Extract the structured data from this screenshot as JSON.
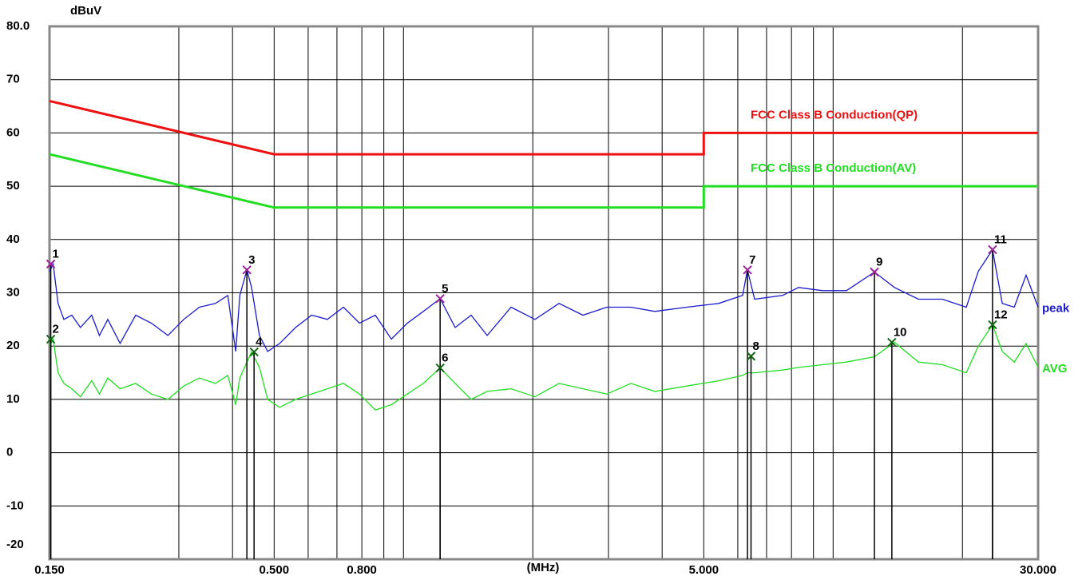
{
  "chart_data": {
    "type": "line",
    "log_x": true,
    "grid": true,
    "y_label": "dBuV",
    "x_label": "(MHz)",
    "ylim": [
      -20,
      80
    ],
    "yticks": [
      {
        "value": 80,
        "label": "80.0"
      },
      70,
      60,
      50,
      40,
      30,
      20,
      10,
      0,
      -10,
      -20
    ],
    "xlim": [
      0.15,
      30
    ],
    "xticks": [
      {
        "value": 0.15,
        "label": "0.150"
      },
      {
        "value": 0.5,
        "label": "0.500"
      },
      {
        "value": 0.8,
        "label": "0.800"
      },
      {
        "value": 5,
        "label": "5.000"
      },
      {
        "value": 30,
        "label": "30.000"
      }
    ],
    "xgrid": [
      0.3,
      0.4,
      0.5,
      0.6,
      0.7,
      0.8,
      0.9,
      1,
      2,
      3,
      4,
      5,
      6,
      7,
      8,
      9,
      10,
      20
    ],
    "series": [
      {
        "name": "FCC Class B Conduction(QP)",
        "color": "#ee1111",
        "width": 3,
        "x": [
          0.15,
          0.5,
          5,
          5,
          30
        ],
        "values": [
          66,
          56,
          56,
          60,
          60
        ]
      },
      {
        "name": "FCC Class B Conduction(AV)",
        "color": "#22dd22",
        "width": 3,
        "x": [
          0.15,
          0.5,
          5,
          5,
          30
        ],
        "values": [
          56,
          46,
          46,
          50,
          50
        ]
      },
      {
        "name": "peak",
        "color": "#1a1acc",
        "width": 1.3,
        "x": [
          0.15,
          0.153,
          0.157,
          0.162,
          0.169,
          0.177,
          0.188,
          0.196,
          0.205,
          0.219,
          0.238,
          0.259,
          0.283,
          0.308,
          0.335,
          0.365,
          0.39,
          0.407,
          0.416,
          0.432,
          0.443,
          0.462,
          0.483,
          0.515,
          0.561,
          0.611,
          0.665,
          0.725,
          0.79,
          0.86,
          0.937,
          1.021,
          1.112,
          1.217,
          1.319,
          1.437,
          1.566,
          1.78,
          2.024,
          2.302,
          2.616,
          2.975,
          3.383,
          3.846,
          4.564,
          5.416,
          6.158,
          6.318,
          6.567,
          7.629,
          8.31,
          9.45,
          10.74,
          12.48,
          13.89,
          15.8,
          17.96,
          20.42,
          21.77,
          23.5,
          24.75,
          26.4,
          28.14,
          30
        ],
        "values": [
          34,
          35.4,
          28,
          25,
          25.8,
          23.5,
          25.8,
          22,
          25,
          20.5,
          25.8,
          24.3,
          22,
          25,
          27.3,
          28,
          29.5,
          19,
          29.5,
          34.3,
          31,
          22,
          19,
          20.5,
          23.5,
          25.8,
          25,
          27.3,
          24.3,
          25.8,
          21.3,
          24.3,
          26.5,
          28.9,
          23.5,
          25.8,
          22,
          27.3,
          25,
          28,
          25.8,
          27.3,
          27.3,
          26.5,
          27.3,
          28,
          29.5,
          34.3,
          28.8,
          29.5,
          31,
          30.4,
          30.4,
          33.9,
          31,
          28.8,
          28.8,
          27.3,
          34,
          38.1,
          28,
          27.3,
          33.3,
          27.3
        ]
      },
      {
        "name": "AVG",
        "color": "#22dd22",
        "width": 1.3,
        "x": [
          0.15,
          0.153,
          0.157,
          0.162,
          0.169,
          0.177,
          0.188,
          0.196,
          0.205,
          0.219,
          0.238,
          0.259,
          0.283,
          0.308,
          0.335,
          0.365,
          0.39,
          0.407,
          0.416,
          0.432,
          0.443,
          0.462,
          0.483,
          0.515,
          0.561,
          0.611,
          0.665,
          0.725,
          0.79,
          0.86,
          0.937,
          1.021,
          1.112,
          1.217,
          1.319,
          1.437,
          1.566,
          1.78,
          2.024,
          2.302,
          2.616,
          2.975,
          3.383,
          3.846,
          4.564,
          5.416,
          6.158,
          6.318,
          6.567,
          7.629,
          8.31,
          9.45,
          10.74,
          12.48,
          13.89,
          15.8,
          17.96,
          20.42,
          21.77,
          23.5,
          24.75,
          26.4,
          28.14,
          30
        ],
        "values": [
          20,
          21.3,
          15,
          13,
          12,
          10.5,
          13.5,
          11,
          14,
          12,
          13,
          11,
          10,
          12.5,
          14,
          13,
          14.5,
          9,
          14,
          17,
          18.9,
          16,
          10,
          8.5,
          10,
          11,
          12,
          13,
          11,
          8,
          9,
          11,
          13,
          15.9,
          13,
          10,
          11.5,
          12,
          10.5,
          13,
          12,
          11,
          13,
          11.5,
          12.5,
          13.5,
          14.5,
          15,
          15,
          15.5,
          16,
          16.5,
          17,
          18,
          20.7,
          17,
          16.5,
          15,
          20,
          24,
          19,
          17,
          20.5,
          16
        ]
      }
    ],
    "markers": [
      {
        "label": "1",
        "x": 0.151,
        "value": 35.4,
        "color": "#992299"
      },
      {
        "label": "2",
        "x": 0.151,
        "value": 21.3,
        "color": "#116611"
      },
      {
        "label": "3",
        "x": 0.432,
        "value": 34.3,
        "color": "#992299"
      },
      {
        "label": "4",
        "x": 0.449,
        "value": 18.9,
        "color": "#116611"
      },
      {
        "label": "5",
        "x": 1.217,
        "value": 28.9,
        "color": "#992299"
      },
      {
        "label": "6",
        "x": 1.217,
        "value": 15.9,
        "color": "#116611"
      },
      {
        "label": "7",
        "x": 6.32,
        "value": 34.3,
        "color": "#992299"
      },
      {
        "label": "8",
        "x": 6.44,
        "value": 18.1,
        "color": "#116611"
      },
      {
        "label": "9",
        "x": 12.48,
        "value": 33.9,
        "color": "#992299"
      },
      {
        "label": "10",
        "x": 13.7,
        "value": 20.7,
        "color": "#116611"
      },
      {
        "label": "11",
        "x": 23.5,
        "value": 38.1,
        "color": "#992299"
      },
      {
        "label": "12",
        "x": 23.5,
        "value": 24,
        "color": "#116611"
      }
    ]
  }
}
